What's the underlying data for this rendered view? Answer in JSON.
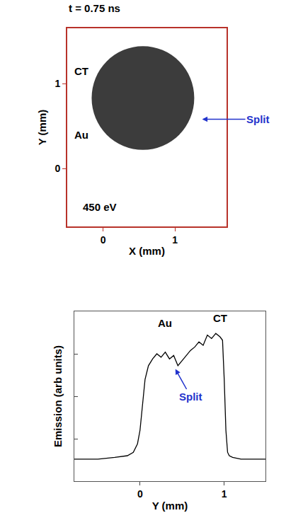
{
  "chart_data": [
    {
      "type": "image",
      "title": "t = 0.75 ns",
      "x_label": "X (mm)",
      "y_label": "Y (mm)",
      "xlim": [
        -0.5,
        1.72
      ],
      "ylim": [
        -0.68,
        1.65
      ],
      "xticks": [
        0,
        1
      ],
      "yticks": [
        0,
        1
      ],
      "disk": {
        "x0": -0.16,
        "x1": 1.27,
        "y0": 0.22,
        "y1": 1.44
      },
      "color": "#2b2b2b",
      "annotations": [
        {
          "text": "CT",
          "x": -0.3,
          "y": 1.15
        },
        {
          "text": "Au",
          "x": -0.3,
          "y": 0.4
        },
        {
          "text": "450 eV",
          "x": -0.05,
          "y": -0.45
        },
        {
          "text": "Split",
          "x": 2.16,
          "y": 0.58,
          "arrow_x": 1.38,
          "arrow_y": 0.58,
          "color": "#2233cc"
        }
      ]
    },
    {
      "type": "line",
      "x_label": "Y (mm)",
      "y_label": "Emission (arb units)",
      "xlim": [
        -0.78,
        1.49
      ],
      "ylim": [
        0,
        1
      ],
      "xticks": [
        0,
        1
      ],
      "yticks": [
        0.25,
        0.5,
        0.75
      ],
      "tick_labels": "x",
      "color": "#000000",
      "x": [
        -0.78,
        -0.5,
        -0.3,
        -0.15,
        -0.08,
        -0.03,
        0.0,
        0.03,
        0.06,
        0.1,
        0.15,
        0.2,
        0.25,
        0.3,
        0.35,
        0.4,
        0.45,
        0.5,
        0.55,
        0.6,
        0.65,
        0.7,
        0.75,
        0.8,
        0.85,
        0.9,
        0.95,
        0.98,
        1.0,
        1.02,
        1.04,
        1.06,
        1.1,
        1.2,
        1.35,
        1.49
      ],
      "values": [
        0.13,
        0.13,
        0.14,
        0.15,
        0.17,
        0.22,
        0.3,
        0.45,
        0.6,
        0.68,
        0.72,
        0.75,
        0.73,
        0.76,
        0.72,
        0.74,
        0.68,
        0.71,
        0.74,
        0.77,
        0.79,
        0.82,
        0.8,
        0.86,
        0.84,
        0.87,
        0.85,
        0.83,
        0.6,
        0.3,
        0.17,
        0.15,
        0.14,
        0.13,
        0.13,
        0.13
      ],
      "annotations": [
        {
          "text": "Au",
          "x": 0.3,
          "y": 0.93
        },
        {
          "text": "CT",
          "x": 0.95,
          "y": 0.96
        },
        {
          "text": "Split",
          "x": 0.6,
          "y": 0.5,
          "arrow_x": 0.42,
          "arrow_y": 0.66,
          "color": "#2233cc"
        }
      ]
    }
  ]
}
